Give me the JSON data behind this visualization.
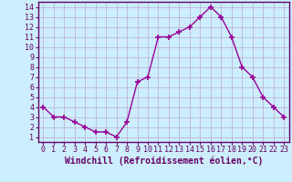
{
  "x": [
    0,
    1,
    2,
    3,
    4,
    5,
    6,
    7,
    8,
    9,
    10,
    11,
    12,
    13,
    14,
    15,
    16,
    17,
    18,
    19,
    20,
    21,
    22,
    23
  ],
  "y": [
    4,
    3,
    3,
    2.5,
    2,
    1.5,
    1.5,
    1,
    2.5,
    6.5,
    7,
    11,
    11,
    11.5,
    12,
    13,
    14,
    13,
    11,
    8,
    7,
    5,
    4,
    3
  ],
  "line_color": "#990099",
  "marker": "+",
  "marker_size": 4,
  "marker_color": "#990099",
  "background_color": "#cceeff",
  "grid_color": "#bbaacc",
  "xlabel": "Windchill (Refroidissement éolien,°C)",
  "xlabel_fontsize": 7,
  "xlim": [
    -0.5,
    23.5
  ],
  "ylim": [
    0.5,
    14.5
  ],
  "xticks": [
    0,
    1,
    2,
    3,
    4,
    5,
    6,
    7,
    8,
    9,
    10,
    11,
    12,
    13,
    14,
    15,
    16,
    17,
    18,
    19,
    20,
    21,
    22,
    23
  ],
  "yticks": [
    1,
    2,
    3,
    4,
    5,
    6,
    7,
    8,
    9,
    10,
    11,
    12,
    13,
    14
  ],
  "tick_fontsize": 6,
  "spine_color": "#660066",
  "line_width": 1.0
}
